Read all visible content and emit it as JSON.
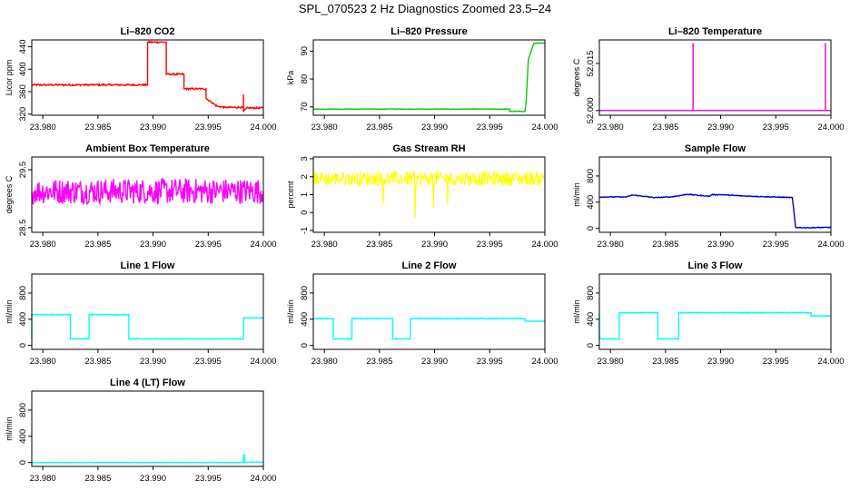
{
  "figure_title": "SPL_070523  2 Hz Diagnostics Zoomed 23.5–24",
  "chart_data": [
    {
      "type": "line",
      "title": "Li–820 CO2",
      "ylabel": "Licor ppm",
      "color": "#ff0000",
      "xlim": [
        23.979,
        24.0
      ],
      "ylim": [
        318,
        452
      ],
      "xticks": [
        "23.980",
        "23.985",
        "23.990",
        "23.995",
        "24.000"
      ],
      "xtick_values": [
        23.98,
        23.985,
        23.99,
        23.995,
        24.0
      ],
      "yticks": [
        "320",
        "360",
        "400",
        "440"
      ],
      "ytick_values": [
        320,
        360,
        400,
        440
      ],
      "noise": 1.5,
      "series": [
        {
          "x": [
            23.979,
            23.9895,
            23.9895,
            23.9912,
            23.9912,
            23.9928,
            23.9928,
            23.9948,
            23.9948,
            23.9958,
            23.9965,
            23.9982,
            23.9982,
            23.9982,
            23.9985,
            24.0
          ],
          "y": [
            372,
            372,
            448,
            448,
            391,
            391,
            365,
            365,
            348,
            334,
            332,
            332,
            355,
            324,
            331,
            331
          ]
        }
      ]
    },
    {
      "type": "line",
      "title": "Li–820 Pressure",
      "ylabel": "kPa",
      "color": "#00cc00",
      "xlim": [
        23.979,
        24.0
      ],
      "ylim": [
        67,
        94
      ],
      "xticks": [
        "23.980",
        "23.985",
        "23.990",
        "23.995",
        "24.000"
      ],
      "xtick_values": [
        23.98,
        23.985,
        23.99,
        23.995,
        24.0
      ],
      "yticks": [
        "70",
        "80",
        "90"
      ],
      "ytick_values": [
        70,
        80,
        90
      ],
      "noise": 0.1,
      "series": [
        {
          "x": [
            23.979,
            23.9968,
            23.9968,
            23.9982,
            23.9983,
            23.9985,
            23.999,
            24.0
          ],
          "y": [
            69.2,
            69.2,
            68.4,
            68.4,
            72,
            87,
            92.8,
            92.8
          ]
        }
      ]
    },
    {
      "type": "line",
      "title": "Li–820 Temperature",
      "ylabel": "degrees C",
      "color": "#dd00dd",
      "xlim": [
        23.979,
        24.0
      ],
      "ylim": [
        51.9985,
        52.0225
      ],
      "xticks": [
        "23.980",
        "23.985",
        "23.990",
        "23.995",
        "24.000"
      ],
      "xtick_values": [
        23.98,
        23.985,
        23.99,
        23.995,
        24.0
      ],
      "yticks": [
        "52.000",
        "52.015"
      ],
      "ytick_values": [
        52.0,
        52.015
      ],
      "noise": 0,
      "series": [
        {
          "x": [
            23.979,
            23.9875,
            23.9875,
            23.9875,
            23.9995,
            23.9995,
            23.9995,
            24.0
          ],
          "y": [
            52.0,
            52.0,
            52.0215,
            52.0,
            52.0,
            52.0215,
            52.0,
            52.0
          ]
        }
      ]
    },
    {
      "type": "line",
      "title": "Ambient Box Temperature",
      "ylabel": "degrees C",
      "color": "#ff00ff",
      "xlim": [
        23.979,
        24.0
      ],
      "ylim": [
        28.42,
        29.72
      ],
      "xticks": [
        "23.980",
        "23.985",
        "23.990",
        "23.995",
        "24.000"
      ],
      "xtick_values": [
        23.98,
        23.985,
        23.99,
        23.995,
        24.0
      ],
      "yticks": [
        "28.5",
        "29.5"
      ],
      "ytick_values": [
        28.5,
        29.5
      ],
      "noise": 0.22,
      "series": [
        {
          "x": [
            23.979,
            24.0
          ],
          "y": [
            29.13,
            29.13
          ]
        }
      ]
    },
    {
      "type": "line",
      "title": "Gas Stream RH",
      "ylabel": "percent",
      "color": "#ffff00",
      "xlim": [
        23.979,
        24.0
      ],
      "ylim": [
        -1.1,
        3.1
      ],
      "xticks": [
        "23.980",
        "23.985",
        "23.990",
        "23.995",
        "24.000"
      ],
      "xtick_values": [
        23.98,
        23.985,
        23.99,
        23.995,
        24.0
      ],
      "yticks": [
        "-1",
        "0",
        "1",
        "2",
        "3"
      ],
      "ytick_values": [
        -1,
        0,
        1,
        2,
        3
      ],
      "noise": 0.4,
      "series": [
        {
          "x": [
            23.979,
            24.0
          ],
          "y": [
            1.9,
            1.9
          ]
        }
      ]
    },
    {
      "type": "line",
      "title": "Sample Flow",
      "ylabel": "ml/min",
      "color": "#0000cc",
      "xlim": [
        23.979,
        24.0
      ],
      "ylim": [
        -60,
        1090
      ],
      "xticks": [
        "23.980",
        "23.985",
        "23.990",
        "23.995",
        "24.000"
      ],
      "xtick_values": [
        23.98,
        23.985,
        23.99,
        23.995,
        24.0
      ],
      "yticks": [
        "0",
        "400",
        "800"
      ],
      "ytick_values": [
        0,
        400,
        800
      ],
      "noise": 6,
      "series": [
        {
          "x": [
            23.979,
            23.9815,
            23.982,
            23.984,
            23.9855,
            23.987,
            23.989,
            23.9892,
            23.99,
            23.992,
            23.9965,
            23.9968,
            23.9975,
            24.0
          ],
          "y": [
            480,
            480,
            510,
            470,
            480,
            520,
            490,
            515,
            515,
            495,
            470,
            15,
            10,
            15
          ]
        }
      ]
    },
    {
      "type": "line",
      "title": "Line 1 Flow",
      "ylabel": "ml/min",
      "color": "#00ffff",
      "xlim": [
        23.979,
        24.0
      ],
      "ylim": [
        -60,
        1090
      ],
      "xticks": [
        "23.980",
        "23.985",
        "23.990",
        "23.995",
        "24.000"
      ],
      "xtick_values": [
        23.98,
        23.985,
        23.99,
        23.995,
        24.0
      ],
      "yticks": [
        "0",
        "400",
        "800"
      ],
      "ytick_values": [
        0,
        400,
        800
      ],
      "noise": 6,
      "series": [
        {
          "x": [
            23.979,
            23.979,
            23.9825,
            23.9825,
            23.9842,
            23.9842,
            23.9878,
            23.9878,
            23.9982,
            23.9982,
            24.0
          ],
          "y": [
            100,
            470,
            470,
            100,
            100,
            470,
            470,
            100,
            100,
            420,
            420
          ]
        }
      ]
    },
    {
      "type": "line",
      "title": "Line 2 Flow",
      "ylabel": "ml/min",
      "color": "#00ffff",
      "xlim": [
        23.979,
        24.0
      ],
      "ylim": [
        -60,
        1090
      ],
      "xticks": [
        "23.980",
        "23.985",
        "23.990",
        "23.995",
        "24.000"
      ],
      "xtick_values": [
        23.98,
        23.985,
        23.99,
        23.995,
        24.0
      ],
      "yticks": [
        "0",
        "400",
        "800"
      ],
      "ytick_values": [
        0,
        400,
        800
      ],
      "noise": 6,
      "series": [
        {
          "x": [
            23.979,
            23.9808,
            23.9808,
            23.9825,
            23.9825,
            23.9862,
            23.9862,
            23.9878,
            23.9878,
            23.9982,
            23.9982,
            24.0
          ],
          "y": [
            410,
            410,
            100,
            100,
            410,
            410,
            100,
            100,
            410,
            410,
            370,
            370
          ]
        }
      ]
    },
    {
      "type": "line",
      "title": "Line 3 Flow",
      "ylabel": "ml/min",
      "color": "#00ffff",
      "xlim": [
        23.979,
        24.0
      ],
      "ylim": [
        -60,
        1090
      ],
      "xticks": [
        "23.980",
        "23.985",
        "23.990",
        "23.995",
        "24.000"
      ],
      "xtick_values": [
        23.98,
        23.985,
        23.99,
        23.995,
        24.0
      ],
      "yticks": [
        "0",
        "400",
        "800"
      ],
      "ytick_values": [
        0,
        400,
        800
      ],
      "noise": 6,
      "series": [
        {
          "x": [
            23.979,
            23.979,
            23.9808,
            23.9808,
            23.9843,
            23.9843,
            23.9862,
            23.9862,
            23.9982,
            23.9982,
            24.0
          ],
          "y": [
            500,
            100,
            100,
            500,
            500,
            100,
            100,
            500,
            500,
            450,
            450
          ]
        }
      ]
    },
    {
      "type": "line",
      "title": "Line 4 (LT) Flow",
      "ylabel": "ml/min",
      "color": "#00ffff",
      "xlim": [
        23.979,
        24.0
      ],
      "ylim": [
        -60,
        1090
      ],
      "xticks": [
        "23.980",
        "23.985",
        "23.990",
        "23.995",
        "24.000"
      ],
      "xtick_values": [
        23.98,
        23.985,
        23.99,
        23.995,
        24.0
      ],
      "yticks": [
        "0",
        "400",
        "800"
      ],
      "ytick_values": [
        0,
        400,
        800
      ],
      "noise": 3,
      "series": [
        {
          "x": [
            23.979,
            23.9982,
            23.9982,
            23.9983,
            23.9983,
            24.0
          ],
          "y": [
            0,
            0,
            110,
            110,
            5,
            5
          ]
        }
      ]
    }
  ]
}
